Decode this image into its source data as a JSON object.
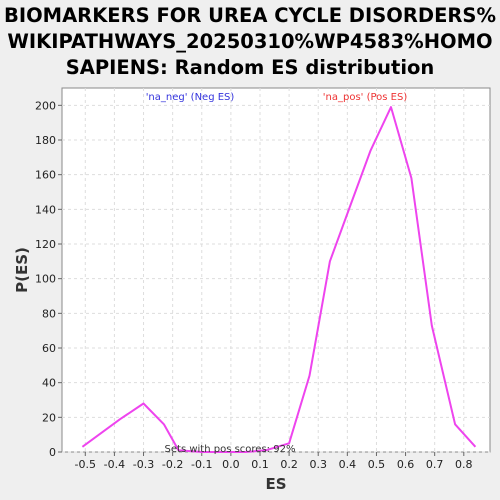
{
  "chart_data": {
    "type": "line",
    "title_lines": [
      "BIOMARKERS FOR UREA CYCLE DISORDERS%",
      "WIKIPATHWAYS_20250310%WP4583%HOMO",
      "SAPIENS: Random ES distribution"
    ],
    "xlabel": "ES",
    "ylabel": "P(ES)",
    "xlim": [
      -0.58,
      0.89
    ],
    "ylim": [
      0,
      210
    ],
    "xticks": [
      "-0.5",
      "-0.4",
      "-0.3",
      "-0.2",
      "-0.1",
      "0.0",
      "0.1",
      "0.2",
      "0.3",
      "0.4",
      "0.5",
      "0.6",
      "0.7",
      "0.8"
    ],
    "yticks": [
      "0",
      "20",
      "40",
      "60",
      "80",
      "100",
      "120",
      "140",
      "160",
      "180",
      "200"
    ],
    "grid": true,
    "series": [
      {
        "color": "#ee44ee",
        "x": [
          -0.51,
          -0.38,
          -0.3,
          -0.23,
          -0.18,
          -0.1,
          -0.03,
          0.05,
          0.12,
          0.2,
          0.27,
          0.34,
          0.41,
          0.48,
          0.55,
          0.62,
          0.69,
          0.77,
          0.84
        ],
        "y": [
          3,
          19,
          28,
          16,
          1,
          0,
          0,
          0,
          1,
          5,
          44,
          110,
          142,
          174,
          199,
          158,
          73,
          16,
          3
        ]
      }
    ],
    "annotations": {
      "neg": {
        "text": "'na_neg' (Neg ES)",
        "color": "#3333dd"
      },
      "pos": {
        "text": "'na_pos' (Pos ES)",
        "color": "#ee3333"
      },
      "footer": {
        "text": "Sets with pos scores: 92%",
        "color": "#333333"
      }
    }
  }
}
